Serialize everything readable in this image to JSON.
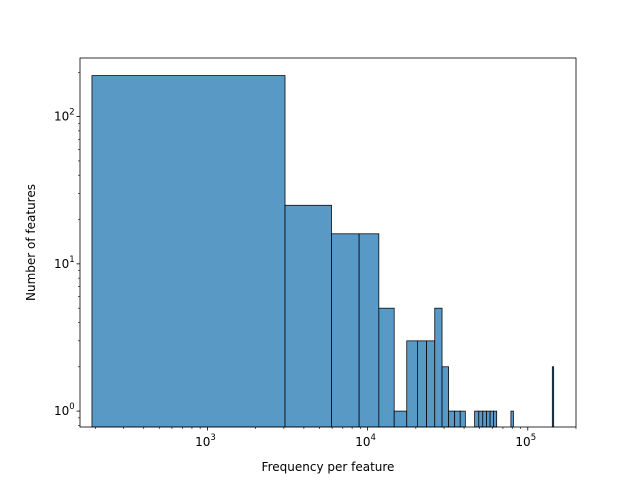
{
  "chart_data": {
    "type": "bar",
    "title": "",
    "xlabel": "Frequency per feature",
    "ylabel": "Number of features",
    "xscale": "log",
    "yscale": "log",
    "xlim": [
      160,
      200000
    ],
    "ylim": [
      0.78,
      250
    ],
    "grid": false,
    "legend": "none",
    "bar_color": "#5899c6",
    "edge_color": "#000000",
    "x_ticks": [
      {
        "value": 1000,
        "base": "10",
        "exp": "3"
      },
      {
        "value": 10000,
        "base": "10",
        "exp": "4"
      },
      {
        "value": 100000,
        "base": "10",
        "exp": "5"
      }
    ],
    "y_ticks": [
      {
        "value": 1,
        "base": "10",
        "exp": "0"
      },
      {
        "value": 10,
        "base": "10",
        "exp": "1"
      },
      {
        "value": 100,
        "base": "10",
        "exp": "2"
      }
    ],
    "bins": [
      {
        "x0": 190,
        "x1": 3050,
        "count": 190
      },
      {
        "x0": 3050,
        "x1": 5950,
        "count": 25
      },
      {
        "x0": 5950,
        "x1": 8850,
        "count": 16
      },
      {
        "x0": 8850,
        "x1": 11750,
        "count": 16
      },
      {
        "x0": 11750,
        "x1": 14650,
        "count": 5
      },
      {
        "x0": 14650,
        "x1": 17550,
        "count": 1
      },
      {
        "x0": 17550,
        "x1": 20450,
        "count": 3
      },
      {
        "x0": 20450,
        "x1": 23350,
        "count": 3
      },
      {
        "x0": 23350,
        "x1": 26250,
        "count": 3
      },
      {
        "x0": 26250,
        "x1": 29150,
        "count": 5
      },
      {
        "x0": 29150,
        "x1": 32050,
        "count": 2
      },
      {
        "x0": 32050,
        "x1": 34950,
        "count": 1
      },
      {
        "x0": 34950,
        "x1": 37850,
        "count": 1
      },
      {
        "x0": 37850,
        "x1": 40750,
        "count": 1
      },
      {
        "x0": 46550,
        "x1": 49450,
        "count": 1
      },
      {
        "x0": 49450,
        "x1": 52350,
        "count": 1
      },
      {
        "x0": 52350,
        "x1": 55250,
        "count": 1
      },
      {
        "x0": 55250,
        "x1": 58150,
        "count": 1
      },
      {
        "x0": 58150,
        "x1": 61050,
        "count": 1
      },
      {
        "x0": 61050,
        "x1": 63950,
        "count": 1
      },
      {
        "x0": 78450,
        "x1": 81350,
        "count": 1
      },
      {
        "x0": 142250,
        "x1": 145150,
        "count": 2
      }
    ]
  }
}
